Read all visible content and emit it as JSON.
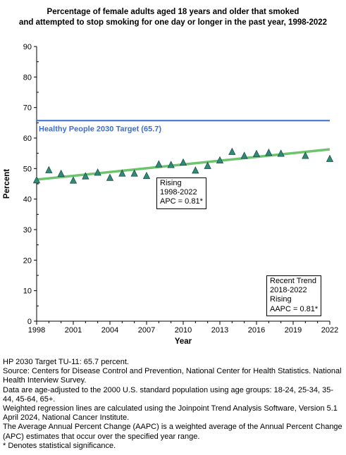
{
  "chart_data": {
    "type": "scatter",
    "title_lines": [
      "Percentage of female adults aged 18 years and older that smoked",
      "and attempted to stop smoking for one day or longer in the past year, 1998-2022"
    ],
    "xlabel": "Year",
    "ylabel": "Percent",
    "xlim": [
      1998,
      2022
    ],
    "ylim": [
      0,
      90
    ],
    "xticks": [
      1998,
      2001,
      2004,
      2007,
      2010,
      2013,
      2016,
      2019,
      2022
    ],
    "yticks": [
      0,
      10,
      20,
      30,
      40,
      50,
      60,
      70,
      80,
      90
    ],
    "grid": false,
    "series": [
      {
        "marker": "triangle",
        "color": "#2e8b77",
        "x": [
          1998,
          1999,
          2000,
          2001,
          2002,
          2003,
          2004,
          2005,
          2006,
          2007,
          2008,
          2009,
          2010,
          2011,
          2012,
          2013,
          2014,
          2015,
          2016,
          2017,
          2018,
          2020,
          2022
        ],
        "y": [
          46.2,
          49.5,
          48.3,
          46.1,
          47.5,
          48.7,
          47.0,
          48.4,
          48.4,
          47.6,
          51.4,
          51.2,
          52.0,
          49.4,
          50.9,
          52.7,
          55.5,
          54.2,
          54.8,
          55.2,
          54.9,
          54.2,
          53.2
        ]
      }
    ],
    "trend_line": {
      "x": [
        1998,
        2022
      ],
      "y": [
        46.4,
        56.3
      ],
      "color": "#6cc46c"
    },
    "target_line": {
      "y": 65.7,
      "label": "Healthy People 2030 Target (65.7)",
      "color": "#3a6fd8"
    },
    "annotations": [
      {
        "lines": [
          "Rising",
          "1998-2022",
          "APC =  0.81*"
        ]
      },
      {
        "lines": [
          "Recent Trend",
          "2018-2022",
          "Rising",
          "AAPC =  0.81*"
        ]
      }
    ]
  },
  "notes": [
    "HP 2030 Target TU-11: 65.7 percent.",
    "Source: Centers for Disease Control and Prevention, National Center for Health Statistics. National Health Interview Survey.",
    "Data are age-adjusted to the 2000 U.S. standard population using age groups: 18-24, 25-34, 35-44, 45-64, 65+.",
    "Weighted regression lines are calculated using the Joinpoint Trend Analysis Software, Version 5.1 April 2024, National Cancer Institute.",
    "The Average Annual Percent Change (AAPC) is a weighted average of the Annual Percent Change (APC) estimates that occur over the specified year range.",
    "* Denotes statistical significance."
  ]
}
